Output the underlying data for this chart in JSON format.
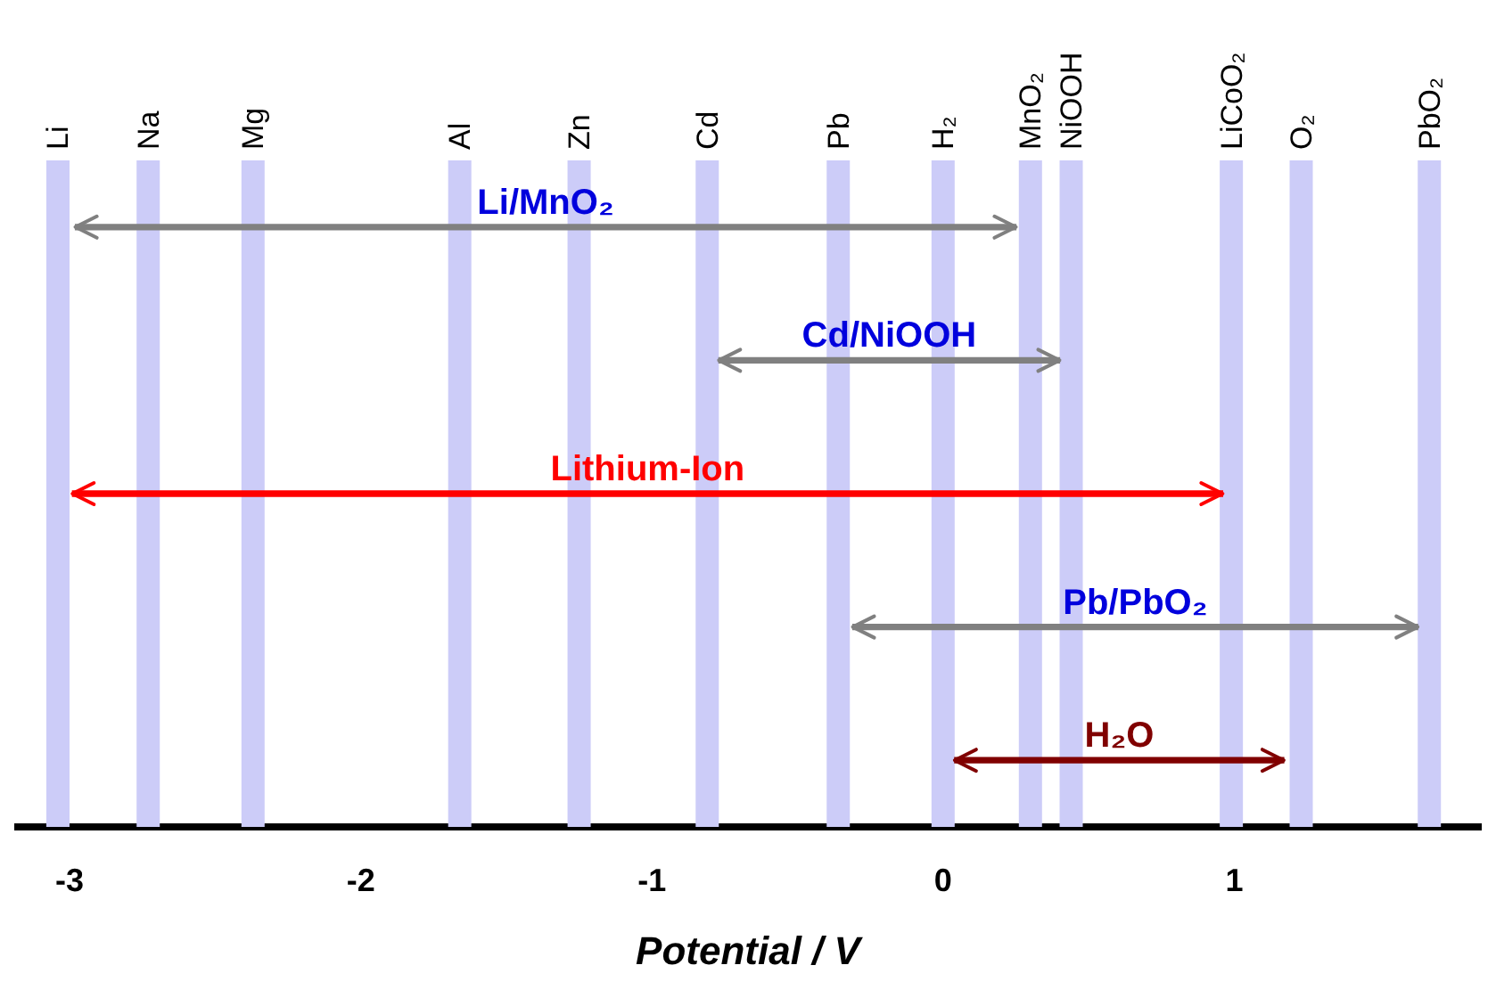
{
  "chart_data": {
    "type": "bar",
    "orientation": "horizontal",
    "xlabel": "Potential / V",
    "categories": [
      "Li/MnO₂",
      "Cd/NiOOH",
      "Lithium-Ion",
      "Pb/PbO₂",
      "H₂O"
    ],
    "base": [
      -2.98,
      -0.77,
      -2.99,
      -0.31,
      0.04
    ],
    "values": [
      3.23,
      1.17,
      3.95,
      1.94,
      1.13
    ],
    "colors": [
      "#808080",
      "#808080",
      "#ff0000",
      "#808080",
      "#800000"
    ],
    "xlim": [
      -3.19,
      1.85
    ],
    "xticks": [
      -3,
      -2,
      -1,
      0,
      1
    ],
    "grid": false,
    "legend": false,
    "ref_lines": [
      {
        "axis": "x",
        "value": -3.04,
        "label": "Li",
        "color": "#ccccf8"
      },
      {
        "axis": "x",
        "value": -2.73,
        "label": "Na",
        "color": "#ccccf8"
      },
      {
        "axis": "x",
        "value": -2.37,
        "label": "Mg",
        "color": "#ccccf8"
      },
      {
        "axis": "x",
        "value": -1.66,
        "label": "Al",
        "color": "#ccccf8"
      },
      {
        "axis": "x",
        "value": -1.25,
        "label": "Zn",
        "color": "#ccccf8"
      },
      {
        "axis": "x",
        "value": -0.81,
        "label": "Cd",
        "color": "#ccccf8"
      },
      {
        "axis": "x",
        "value": -0.36,
        "label": "Pb",
        "color": "#ccccf8"
      },
      {
        "axis": "x",
        "value": 0,
        "label": "H₂",
        "color": "#ccccf8"
      },
      {
        "axis": "x",
        "value": 0.3,
        "label": "MnO₂",
        "color": "#ccccf8"
      },
      {
        "axis": "x",
        "value": 0.44,
        "label": "NiOOH",
        "color": "#ccccf8"
      },
      {
        "axis": "x",
        "value": 0.99,
        "label": "LiCoO₂",
        "color": "#ccccf8"
      },
      {
        "axis": "x",
        "value": 1.23,
        "label": "O₂",
        "color": "#ccccf8"
      },
      {
        "axis": "x",
        "value": 1.67,
        "label": "PbO₂",
        "color": "#ccccf8"
      }
    ]
  }
}
